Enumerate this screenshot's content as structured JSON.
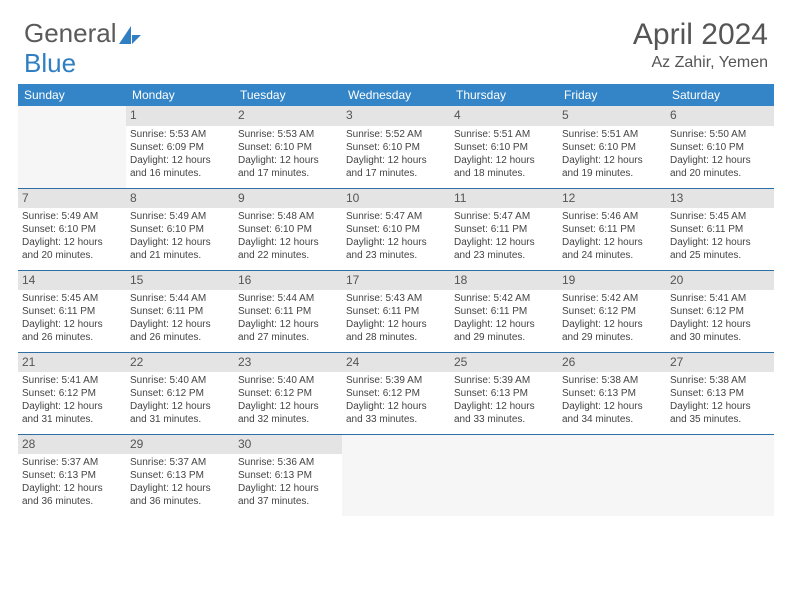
{
  "logo": {
    "text_a": "General",
    "text_b": "Blue"
  },
  "title": "April 2024",
  "location": "Az Zahir, Yemen",
  "colors": {
    "header_bg": "#3485c7",
    "header_text": "#ffffff",
    "row_divider": "#2f6fa8",
    "daynum_bg": "#e4e4e4",
    "body_text": "#444444",
    "title_text": "#555555"
  },
  "weekdays": [
    "Sunday",
    "Monday",
    "Tuesday",
    "Wednesday",
    "Thursday",
    "Friday",
    "Saturday"
  ],
  "weeks": [
    [
      {
        "empty": true
      },
      {
        "day": "1",
        "sunrise": "5:53 AM",
        "sunset": "6:09 PM",
        "daylight": "12 hours and 16 minutes."
      },
      {
        "day": "2",
        "sunrise": "5:53 AM",
        "sunset": "6:10 PM",
        "daylight": "12 hours and 17 minutes."
      },
      {
        "day": "3",
        "sunrise": "5:52 AM",
        "sunset": "6:10 PM",
        "daylight": "12 hours and 17 minutes."
      },
      {
        "day": "4",
        "sunrise": "5:51 AM",
        "sunset": "6:10 PM",
        "daylight": "12 hours and 18 minutes."
      },
      {
        "day": "5",
        "sunrise": "5:51 AM",
        "sunset": "6:10 PM",
        "daylight": "12 hours and 19 minutes."
      },
      {
        "day": "6",
        "sunrise": "5:50 AM",
        "sunset": "6:10 PM",
        "daylight": "12 hours and 20 minutes."
      }
    ],
    [
      {
        "day": "7",
        "sunrise": "5:49 AM",
        "sunset": "6:10 PM",
        "daylight": "12 hours and 20 minutes."
      },
      {
        "day": "8",
        "sunrise": "5:49 AM",
        "sunset": "6:10 PM",
        "daylight": "12 hours and 21 minutes."
      },
      {
        "day": "9",
        "sunrise": "5:48 AM",
        "sunset": "6:10 PM",
        "daylight": "12 hours and 22 minutes."
      },
      {
        "day": "10",
        "sunrise": "5:47 AM",
        "sunset": "6:10 PM",
        "daylight": "12 hours and 23 minutes."
      },
      {
        "day": "11",
        "sunrise": "5:47 AM",
        "sunset": "6:11 PM",
        "daylight": "12 hours and 23 minutes."
      },
      {
        "day": "12",
        "sunrise": "5:46 AM",
        "sunset": "6:11 PM",
        "daylight": "12 hours and 24 minutes."
      },
      {
        "day": "13",
        "sunrise": "5:45 AM",
        "sunset": "6:11 PM",
        "daylight": "12 hours and 25 minutes."
      }
    ],
    [
      {
        "day": "14",
        "sunrise": "5:45 AM",
        "sunset": "6:11 PM",
        "daylight": "12 hours and 26 minutes."
      },
      {
        "day": "15",
        "sunrise": "5:44 AM",
        "sunset": "6:11 PM",
        "daylight": "12 hours and 26 minutes."
      },
      {
        "day": "16",
        "sunrise": "5:44 AM",
        "sunset": "6:11 PM",
        "daylight": "12 hours and 27 minutes."
      },
      {
        "day": "17",
        "sunrise": "5:43 AM",
        "sunset": "6:11 PM",
        "daylight": "12 hours and 28 minutes."
      },
      {
        "day": "18",
        "sunrise": "5:42 AM",
        "sunset": "6:11 PM",
        "daylight": "12 hours and 29 minutes."
      },
      {
        "day": "19",
        "sunrise": "5:42 AM",
        "sunset": "6:12 PM",
        "daylight": "12 hours and 29 minutes."
      },
      {
        "day": "20",
        "sunrise": "5:41 AM",
        "sunset": "6:12 PM",
        "daylight": "12 hours and 30 minutes."
      }
    ],
    [
      {
        "day": "21",
        "sunrise": "5:41 AM",
        "sunset": "6:12 PM",
        "daylight": "12 hours and 31 minutes."
      },
      {
        "day": "22",
        "sunrise": "5:40 AM",
        "sunset": "6:12 PM",
        "daylight": "12 hours and 31 minutes."
      },
      {
        "day": "23",
        "sunrise": "5:40 AM",
        "sunset": "6:12 PM",
        "daylight": "12 hours and 32 minutes."
      },
      {
        "day": "24",
        "sunrise": "5:39 AM",
        "sunset": "6:12 PM",
        "daylight": "12 hours and 33 minutes."
      },
      {
        "day": "25",
        "sunrise": "5:39 AM",
        "sunset": "6:13 PM",
        "daylight": "12 hours and 33 minutes."
      },
      {
        "day": "26",
        "sunrise": "5:38 AM",
        "sunset": "6:13 PM",
        "daylight": "12 hours and 34 minutes."
      },
      {
        "day": "27",
        "sunrise": "5:38 AM",
        "sunset": "6:13 PM",
        "daylight": "12 hours and 35 minutes."
      }
    ],
    [
      {
        "day": "28",
        "sunrise": "5:37 AM",
        "sunset": "6:13 PM",
        "daylight": "12 hours and 36 minutes."
      },
      {
        "day": "29",
        "sunrise": "5:37 AM",
        "sunset": "6:13 PM",
        "daylight": "12 hours and 36 minutes."
      },
      {
        "day": "30",
        "sunrise": "5:36 AM",
        "sunset": "6:13 PM",
        "daylight": "12 hours and 37 minutes."
      },
      {
        "empty": true
      },
      {
        "empty": true
      },
      {
        "empty": true
      },
      {
        "empty": true
      }
    ]
  ],
  "labels": {
    "sunrise_prefix": "Sunrise: ",
    "sunset_prefix": "Sunset: ",
    "daylight_prefix": "Daylight: "
  }
}
